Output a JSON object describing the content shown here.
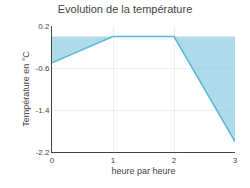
{
  "chart_data": {
    "type": "area",
    "title": "Evolution de la température",
    "xlabel": "heure par heure",
    "ylabel": "Température en °C",
    "x": [
      0,
      1,
      2,
      3
    ],
    "values": [
      -0.5,
      0.0,
      0.0,
      -2.0
    ],
    "color": "#5bb8d4",
    "xlim": [
      0,
      3
    ],
    "ylim": [
      -2.2,
      0.2
    ],
    "xticks": [
      0,
      1,
      2,
      3
    ],
    "yticks": [
      0.2,
      -0.6,
      -1.4,
      -2.2
    ],
    "grid": true
  }
}
